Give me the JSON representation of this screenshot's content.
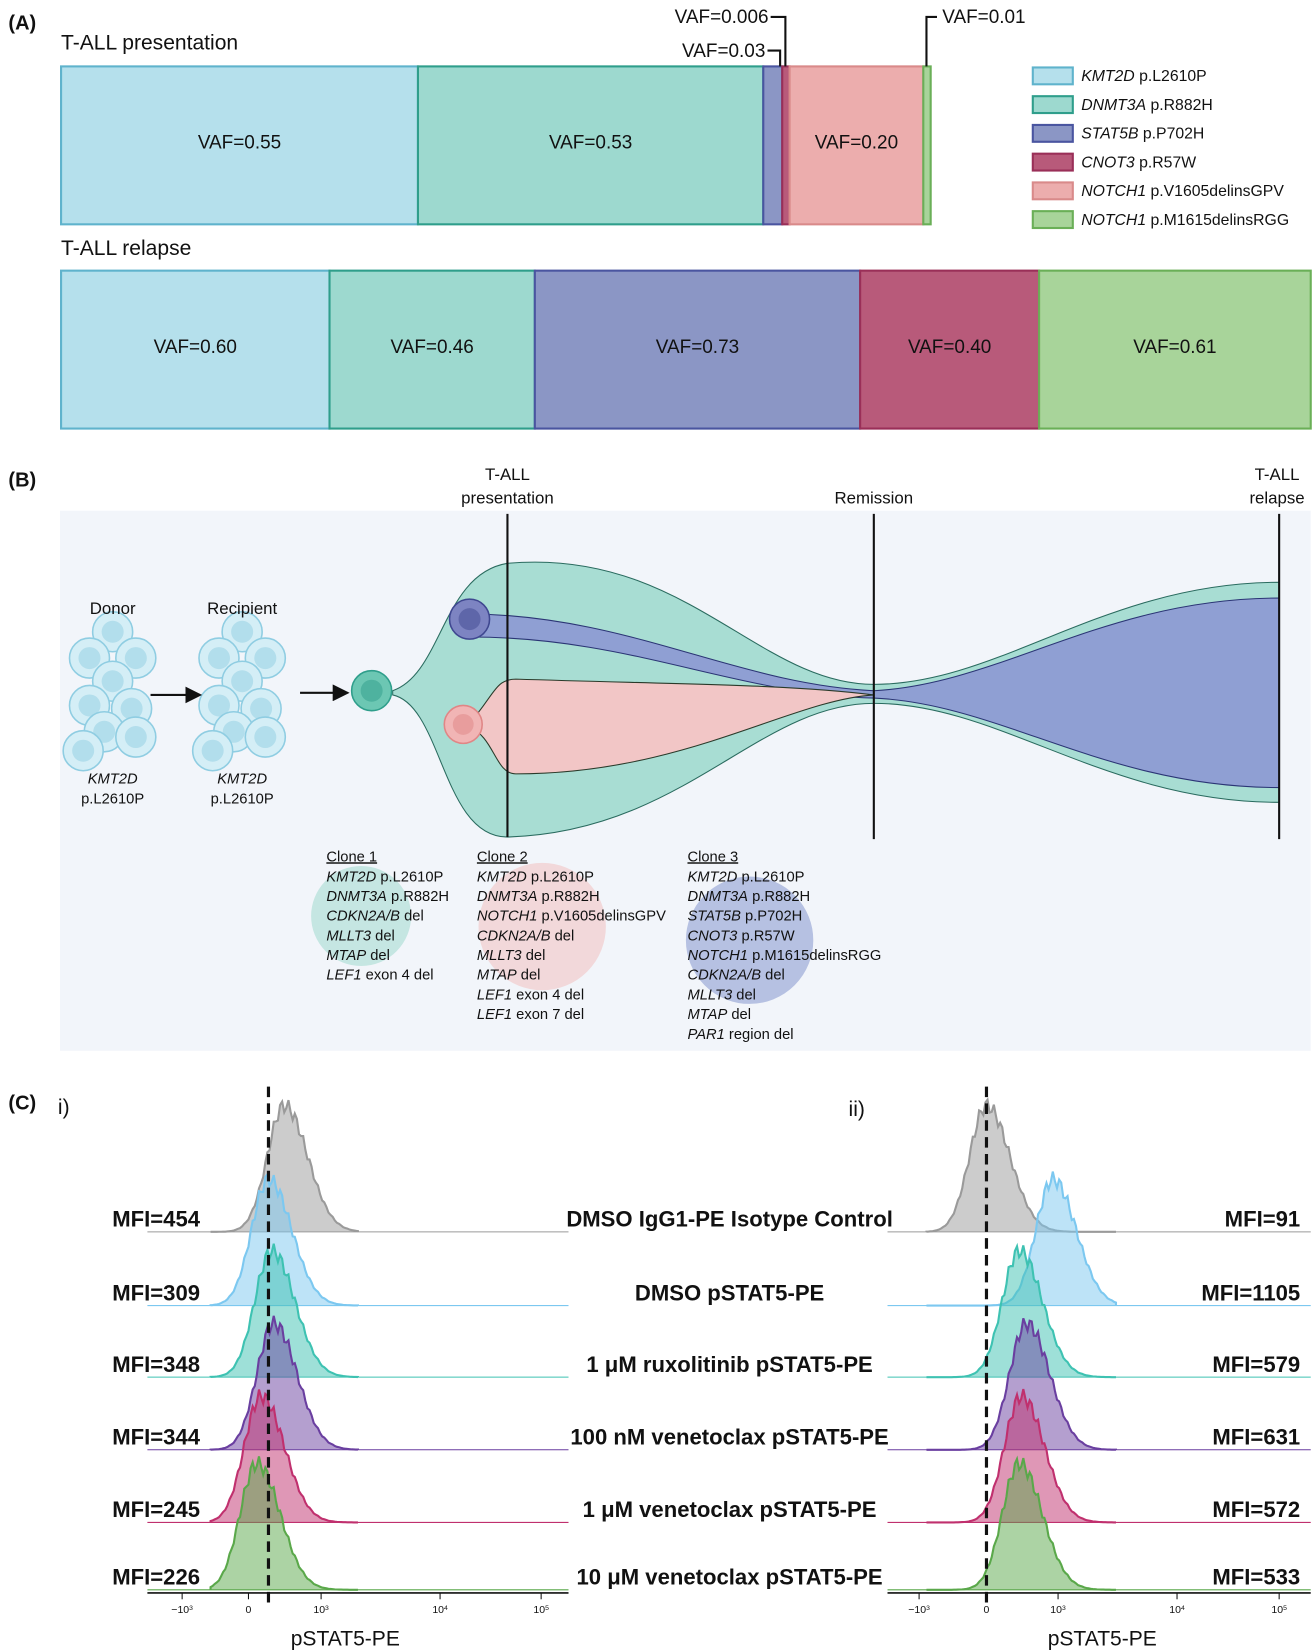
{
  "panel_a": {
    "label": "(A)",
    "rows": [
      {
        "title": "T-ALL presentation",
        "segments": [
          {
            "label": "VAF=0.55",
            "color": "#b5e0ec"
          },
          {
            "label": "VAF=0.53",
            "color": "#9dd9cf"
          },
          {
            "color": "#8b96c5"
          },
          {
            "color": "#b85a7a"
          },
          {
            "label": "VAF=0.20",
            "color": "#ecadad"
          },
          {
            "color": "#a8d49a"
          }
        ]
      },
      {
        "title": "T-ALL relapse",
        "segments": [
          {
            "label": "VAF=0.60",
            "color": "#b5e0ec"
          },
          {
            "label": "VAF=0.46",
            "color": "#9dd9cf"
          },
          {
            "label": "VAF=0.73",
            "color": "#8b96c5"
          },
          {
            "label": "VAF=0.40",
            "color": "#b85a7a"
          },
          {
            "label": "VAF=0.61",
            "color": "#a8d49a"
          }
        ]
      }
    ],
    "callouts": [
      "VAF=0.006",
      "VAF=0.03",
      "VAF=0.01"
    ],
    "legend": [
      {
        "gene": "KMT2D",
        "mutation": "p.L2610P",
        "color": "#b5e0ec",
        "stroke": "#5fb3cc"
      },
      {
        "gene": "DNMT3A",
        "mutation": "p.R882H",
        "color": "#9dd9cf",
        "stroke": "#2f9e8b"
      },
      {
        "gene": "STAT5B",
        "mutation": "p.P702H",
        "color": "#8b96c5",
        "stroke": "#4a55a0"
      },
      {
        "gene": "CNOT3",
        "mutation": "p.R57W",
        "color": "#b85a7a",
        "stroke": "#9a2f58"
      },
      {
        "gene": "NOTCH1",
        "mutation": "p.V1605delinsGPV",
        "color": "#ecadad",
        "stroke": "#d98a8a"
      },
      {
        "gene": "NOTCH1",
        "mutation": "p.M1615delinsRGG",
        "color": "#a8d49a",
        "stroke": "#6aaf57"
      }
    ]
  },
  "panel_b": {
    "label": "(B)",
    "timepoints": [
      {
        "lines": [
          "T-ALL",
          "presentation"
        ]
      },
      {
        "lines": [
          "Remission"
        ]
      },
      {
        "lines": [
          "T-ALL",
          "relapse"
        ]
      }
    ],
    "donor": {
      "title": "Donor",
      "gene": "KMT2D",
      "mutation": "p.L2610P"
    },
    "recipient": {
      "title": "Recipient",
      "gene": "KMT2D",
      "mutation": "p.L2610P"
    },
    "clones": [
      {
        "title": "Clone 1",
        "lines": [
          [
            "KMT2D",
            "p.L2610P"
          ],
          [
            "DNMT3A",
            "p.R882H"
          ],
          [
            "CDKN2A/B",
            "del"
          ],
          [
            "MLLT3",
            "del"
          ],
          [
            "MTAP",
            "del"
          ],
          [
            "LEF1",
            "exon 4 del"
          ]
        ]
      },
      {
        "title": "Clone 2",
        "lines": [
          [
            "KMT2D",
            "p.L2610P"
          ],
          [
            "DNMT3A",
            "p.R882H"
          ],
          [
            "NOTCH1",
            "p.V1605delinsGPV"
          ],
          [
            "CDKN2A/B",
            "del"
          ],
          [
            "MLLT3",
            "del"
          ],
          [
            "MTAP",
            "del"
          ],
          [
            "LEF1",
            "exon 4 del"
          ],
          [
            "LEF1",
            "exon 7 del"
          ]
        ]
      },
      {
        "title": "Clone 3",
        "lines": [
          [
            "KMT2D",
            "p.L2610P"
          ],
          [
            "DNMT3A",
            "p.R882H"
          ],
          [
            "STAT5B",
            "p.P702H"
          ],
          [
            "CNOT3",
            "p.R57W"
          ],
          [
            "NOTCH1",
            "p.M1615delinsRGG"
          ],
          [
            "CDKN2A/B",
            "del"
          ],
          [
            "MLLT3",
            "del"
          ],
          [
            "MTAP",
            "del"
          ],
          [
            "PAR1",
            "region del"
          ]
        ]
      }
    ]
  },
  "panel_c": {
    "label": "(C)",
    "sub_i": "i)",
    "sub_ii": "ii)",
    "x_label": "pSTAT5-PE",
    "ticks": [
      {
        "mantissa": "−10",
        "exponent": "3"
      },
      {
        "mantissa": "0"
      },
      {
        "mantissa": "10",
        "exponent": "3"
      },
      {
        "mantissa": "10",
        "exponent": "4"
      },
      {
        "mantissa": "10",
        "exponent": "5"
      }
    ],
    "rows": [
      {
        "condition": "DMSO IgG1-PE Isotype Control",
        "color": "#9a9a9a",
        "mfi_i": "MFI=454",
        "mfi_ii": "MFI=91"
      },
      {
        "condition": "DMSO pSTAT5-PE",
        "color": "#7cc8f0",
        "mfi_i": "MFI=309",
        "mfi_ii": "MFI=1105"
      },
      {
        "condition": "1 μM ruxolitinib pSTAT5-PE",
        "color": "#3ec2b2",
        "mfi_i": "MFI=348",
        "mfi_ii": "MFI=579"
      },
      {
        "condition": "100 nM venetoclax pSTAT5-PE",
        "color": "#6a3fa0",
        "mfi_i": "MFI=344",
        "mfi_ii": "MFI=631"
      },
      {
        "condition": "1 μM venetoclax pSTAT5-PE",
        "color": "#c0306e",
        "mfi_i": "MFI=245",
        "mfi_ii": "MFI=572"
      },
      {
        "condition": "10 μM venetoclax pSTAT5-PE",
        "color": "#5aa84a",
        "mfi_i": "MFI=226",
        "mfi_ii": "MFI=533"
      }
    ]
  }
}
